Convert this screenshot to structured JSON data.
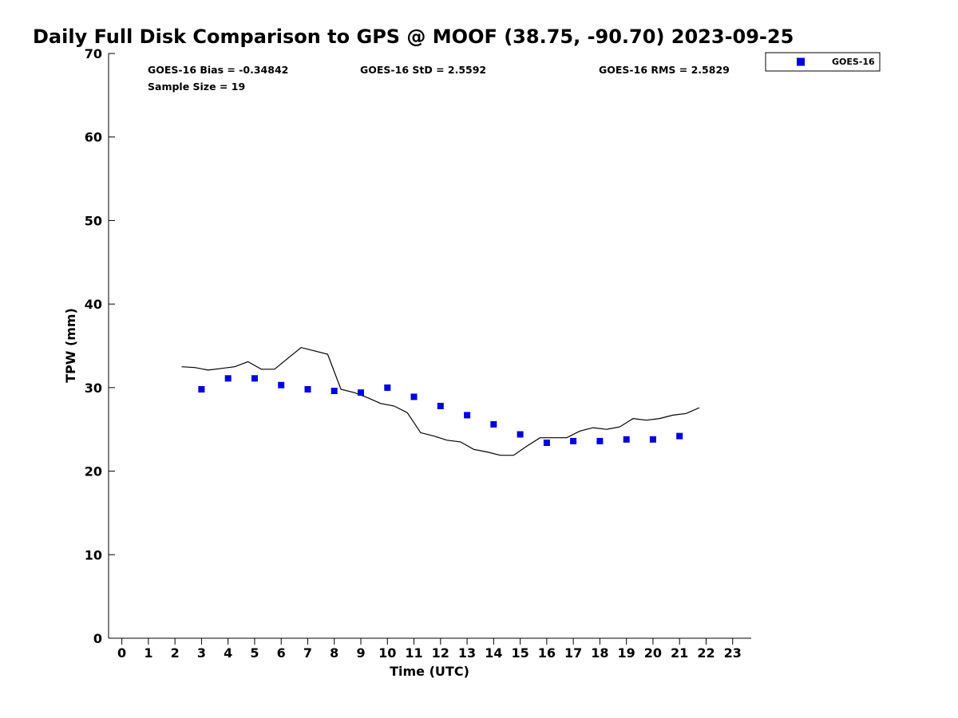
{
  "chart_data": {
    "type": "scatter",
    "title": "Daily Full Disk Comparison to GPS @ MOOF (38.75, -90.70) 2023-09-25",
    "xlabel": "Time (UTC)",
    "ylabel": "TPW (mm)",
    "xlim": [
      -0.5,
      23.7
    ],
    "ylim": [
      0,
      70
    ],
    "x_ticks": [
      0,
      1,
      2,
      3,
      4,
      5,
      6,
      7,
      8,
      9,
      10,
      11,
      12,
      13,
      14,
      15,
      16,
      17,
      18,
      19,
      20,
      21,
      22,
      23
    ],
    "y_ticks": [
      0,
      10,
      20,
      30,
      40,
      50,
      60,
      70
    ],
    "grid": false,
    "legend_position": "top-right",
    "series": [
      {
        "name": "GOES-16",
        "kind": "scatter",
        "marker": "square",
        "color": "#0000dd",
        "x": [
          3,
          4,
          5,
          6,
          7,
          8,
          9,
          10,
          11,
          12,
          13,
          14,
          15,
          16,
          17,
          18,
          19,
          20,
          21
        ],
        "y": [
          29.8,
          31.1,
          31.1,
          30.3,
          29.8,
          29.6,
          29.4,
          30.0,
          28.9,
          27.8,
          26.7,
          25.6,
          24.4,
          23.4,
          23.6,
          23.6,
          23.8,
          23.8,
          24.2
        ]
      },
      {
        "name": "GPS",
        "kind": "line",
        "color": "#000000",
        "x": [
          2.25,
          2.75,
          3.25,
          3.75,
          4.25,
          4.75,
          5.25,
          5.75,
          6.25,
          6.75,
          7.25,
          7.75,
          8.25,
          8.75,
          9.25,
          9.75,
          10.25,
          10.75,
          11.25,
          11.75,
          12.25,
          12.75,
          13.25,
          13.75,
          14.25,
          14.75,
          15.25,
          15.75,
          16.25,
          16.75,
          17.25,
          17.75,
          18.25,
          18.75,
          19.25,
          19.75,
          20.25,
          20.75,
          21.25,
          21.75
        ],
        "y": [
          32.5,
          32.4,
          32.1,
          32.3,
          32.5,
          33.1,
          32.2,
          32.2,
          33.5,
          34.8,
          34.4,
          34.0,
          29.8,
          29.4,
          28.8,
          28.1,
          27.8,
          27.0,
          24.6,
          24.2,
          23.7,
          23.5,
          22.6,
          22.3,
          21.9,
          21.9,
          23.0,
          24.0,
          24.0,
          24.0,
          24.8,
          25.2,
          25.0,
          25.3,
          26.3,
          26.1,
          26.3,
          26.7,
          26.9,
          27.6
        ]
      }
    ],
    "annotations": {
      "bias": "GOES-16 Bias = -0.34842",
      "std": "GOES-16 StD = 2.5592",
      "rms": "GOES-16 RMS = 2.5829",
      "sample_size": "Sample Size = 19"
    },
    "legend": [
      "GOES-16"
    ]
  }
}
